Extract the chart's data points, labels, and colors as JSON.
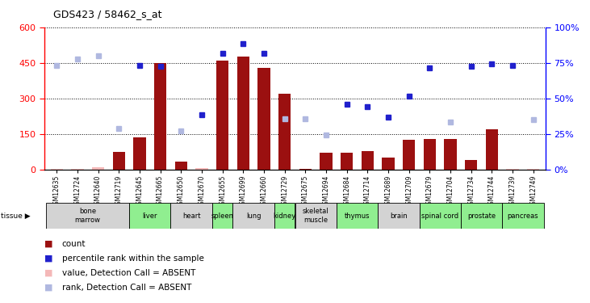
{
  "title": "GDS423 / 58462_s_at",
  "samples": [
    "GSM12635",
    "GSM12724",
    "GSM12640",
    "GSM12719",
    "GSM12645",
    "GSM12665",
    "GSM12650",
    "GSM12670",
    "GSM12655",
    "GSM12699",
    "GSM12660",
    "GSM12729",
    "GSM12675",
    "GSM12694",
    "GSM12684",
    "GSM12714",
    "GSM12689",
    "GSM12709",
    "GSM12679",
    "GSM12704",
    "GSM12734",
    "GSM12744",
    "GSM12739",
    "GSM12749"
  ],
  "tissues": [
    {
      "label": "bone\nmarrow",
      "start": 0,
      "end": 4,
      "color": "#d3d3d3"
    },
    {
      "label": "liver",
      "start": 4,
      "end": 6,
      "color": "#90ee90"
    },
    {
      "label": "heart",
      "start": 6,
      "end": 8,
      "color": "#d3d3d3"
    },
    {
      "label": "spleen",
      "start": 8,
      "end": 9,
      "color": "#90ee90"
    },
    {
      "label": "lung",
      "start": 9,
      "end": 11,
      "color": "#d3d3d3"
    },
    {
      "label": "kidney",
      "start": 11,
      "end": 12,
      "color": "#90ee90"
    },
    {
      "label": "skeletal\nmuscle",
      "start": 12,
      "end": 14,
      "color": "#d3d3d3"
    },
    {
      "label": "thymus",
      "start": 14,
      "end": 16,
      "color": "#90ee90"
    },
    {
      "label": "brain",
      "start": 16,
      "end": 18,
      "color": "#d3d3d3"
    },
    {
      "label": "spinal cord",
      "start": 18,
      "end": 20,
      "color": "#90ee90"
    },
    {
      "label": "prostate",
      "start": 20,
      "end": 22,
      "color": "#90ee90"
    },
    {
      "label": "pancreas",
      "start": 22,
      "end": 24,
      "color": "#90ee90"
    }
  ],
  "bar_values": [
    5,
    5,
    10,
    75,
    135,
    450,
    35,
    7,
    460,
    475,
    430,
    320,
    5,
    70,
    70,
    80,
    50,
    125,
    130,
    130,
    40,
    170,
    5,
    5
  ],
  "bar_absent": [
    true,
    true,
    true,
    false,
    false,
    false,
    false,
    true,
    false,
    false,
    false,
    false,
    false,
    false,
    false,
    false,
    false,
    false,
    false,
    false,
    false,
    false,
    true,
    true
  ],
  "pct_values": [
    73,
    78,
    80,
    null,
    440,
    435,
    null,
    230,
    490,
    530,
    490,
    null,
    null,
    null,
    275,
    265,
    220,
    310,
    430,
    null,
    435,
    445,
    440,
    null
  ],
  "pct_absent": [
    true,
    true,
    true,
    null,
    false,
    false,
    null,
    false,
    false,
    false,
    false,
    null,
    null,
    null,
    false,
    false,
    false,
    false,
    false,
    null,
    false,
    false,
    false,
    null
  ],
  "rank_absent": [
    null,
    null,
    null,
    175,
    null,
    null,
    165,
    null,
    null,
    null,
    null,
    215,
    215,
    145,
    null,
    null,
    null,
    null,
    null,
    200,
    null,
    null,
    null,
    210
  ],
  "ylim_left": [
    0,
    600
  ],
  "ylim_right": [
    0,
    100
  ],
  "yticks_left": [
    0,
    150,
    300,
    450,
    600
  ],
  "yticks_right": [
    0,
    25,
    50,
    75,
    100
  ],
  "bar_color_present": "#9b1010",
  "bar_color_absent": "#f4b8b8",
  "dot_color_present": "#2020cc",
  "dot_color_absent": "#b0b8e0",
  "bg_color": "#ffffff",
  "grid_color": "black"
}
